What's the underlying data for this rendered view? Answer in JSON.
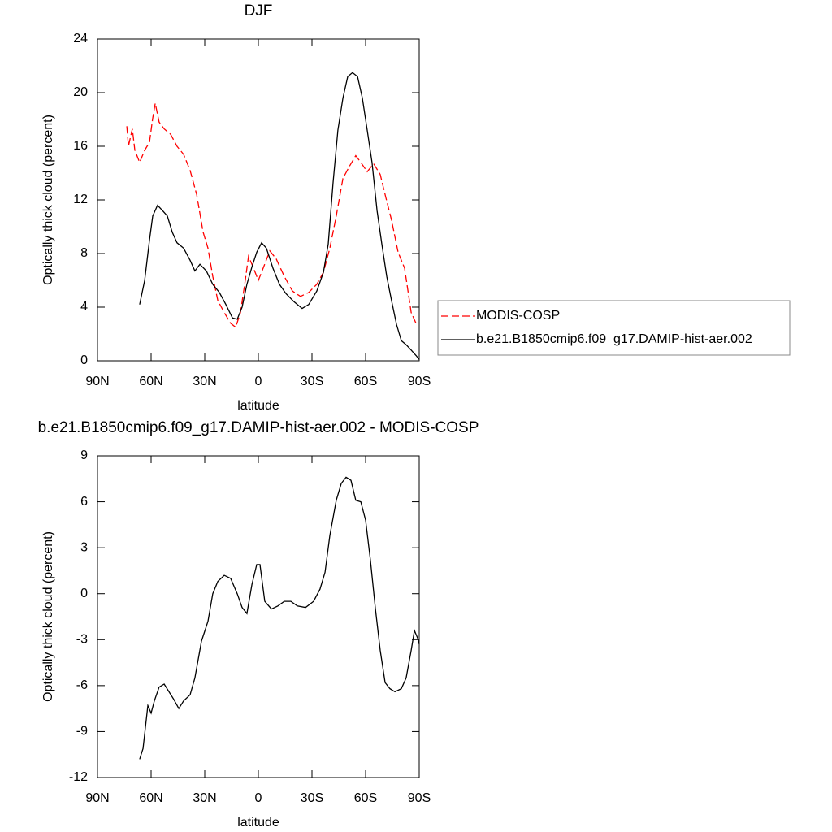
{
  "chart_data": [
    {
      "type": "line",
      "title": "DJF",
      "xlabel": "latitude",
      "ylabel": "Optically thick cloud (percent)",
      "xlim": [
        90,
        -90
      ],
      "xticks": [
        {
          "value": 90,
          "label": "90N"
        },
        {
          "value": 60,
          "label": "60N"
        },
        {
          "value": 30,
          "label": "30N"
        },
        0,
        {
          "value": -30,
          "label": "30S"
        },
        {
          "value": -60,
          "label": "60S"
        },
        {
          "value": -90,
          "label": "90S"
        }
      ],
      "ylim": [
        0,
        24
      ],
      "yticks": [
        0,
        4,
        8,
        12,
        16,
        20,
        24
      ],
      "legend": "right",
      "series": [
        {
          "name": "MODIS-COSP",
          "color": "#ff0000",
          "dashed": true,
          "x": [
            73.6,
            72.7,
            70.5,
            69.1,
            66.4,
            63.6,
            60.9,
            59.1,
            57.7,
            55.5,
            52.7,
            49.1,
            45.5,
            41.8,
            38.2,
            34.5,
            30.9,
            28.2,
            25.5,
            22.7,
            19.1,
            15.5,
            12.7,
            10,
            7.3,
            5.5,
            2.7,
            0,
            -2.7,
            -6.4,
            -10,
            -14.5,
            -19.1,
            -23.6,
            -28.2,
            -32.7,
            -36.4,
            -40,
            -43.6,
            -47.3,
            -50.9,
            -54.5,
            -57.3,
            -60.9,
            -64.5,
            -68.2,
            -70.9,
            -74.5,
            -78.2,
            -81.8,
            -85.5,
            -88.2
          ],
          "values": [
            17.5,
            16,
            17.3,
            15.7,
            14.8,
            15.7,
            16.3,
            18.1,
            19.2,
            17.8,
            17.3,
            16.9,
            16,
            15.4,
            14.2,
            12.4,
            9.6,
            8.4,
            6.3,
            4.5,
            3.6,
            2.8,
            2.5,
            3.6,
            6,
            7.8,
            6.9,
            6,
            6.9,
            8.2,
            7.6,
            6.3,
            5.2,
            4.8,
            5.1,
            5.7,
            6.6,
            8.4,
            10.8,
            13.6,
            14.5,
            15.3,
            14.8,
            14.1,
            14.7,
            13.9,
            12.4,
            10.5,
            8.1,
            6.9,
            3.6,
            2.8
          ]
        },
        {
          "name": "b.e21.B1850cmip6.f09_g17.DAMIP-hist-aer.002",
          "color": "#000000",
          "dashed": false,
          "x": [
            66.4,
            63.6,
            60.9,
            59.1,
            56.4,
            53.6,
            50.9,
            48.2,
            45.5,
            41.8,
            38.2,
            35.5,
            32.7,
            29.1,
            25.5,
            21.8,
            18.2,
            14.5,
            11.8,
            9.1,
            6.4,
            3.6,
            0.9,
            -1.8,
            -4.5,
            -8.2,
            -11.8,
            -15.5,
            -20,
            -24.5,
            -28.2,
            -32.7,
            -36.4,
            -39.1,
            -41.8,
            -44.5,
            -47.3,
            -50,
            -52.7,
            -55.5,
            -58.2,
            -60.9,
            -63.6,
            -66.4,
            -69.1,
            -71.8,
            -74.5,
            -77.3,
            -80,
            -82.7,
            -85.5,
            -88.2,
            -90
          ],
          "values": [
            4.2,
            6,
            9,
            10.8,
            11.6,
            11.2,
            10.8,
            9.6,
            8.8,
            8.4,
            7.5,
            6.7,
            7.2,
            6.7,
            5.7,
            5.1,
            4.2,
            3.2,
            3.1,
            4,
            5.7,
            7,
            8.1,
            8.8,
            8.4,
            6.9,
            5.7,
            5,
            4.4,
            3.9,
            4.2,
            5.2,
            6.6,
            8.7,
            13.3,
            17.2,
            19.6,
            21.2,
            21.5,
            21.2,
            19.6,
            17.2,
            14.8,
            11.2,
            8.7,
            6.3,
            4.5,
            2.7,
            1.5,
            1.2,
            0.8,
            0.4,
            0.1
          ]
        }
      ]
    },
    {
      "type": "line",
      "title": "b.e21.B1850cmip6.f09_g17.DAMIP-hist-aer.002 - MODIS-COSP",
      "xlabel": "latitude",
      "ylabel": "Optically thick cloud (percent)",
      "xlim": [
        90,
        -90
      ],
      "xticks": [
        {
          "value": 90,
          "label": "90N"
        },
        {
          "value": 60,
          "label": "60N"
        },
        {
          "value": 30,
          "label": "30N"
        },
        0,
        {
          "value": -30,
          "label": "30S"
        },
        {
          "value": -60,
          "label": "60S"
        },
        {
          "value": -90,
          "label": "90S"
        }
      ],
      "ylim": [
        -12,
        9
      ],
      "yticks": [
        -12,
        -9,
        -6,
        -3,
        0,
        3,
        6,
        9
      ],
      "series": [
        {
          "color": "#000000",
          "dashed": false,
          "x": [
            66.4,
            64.5,
            61.8,
            60,
            58.2,
            55.5,
            52.7,
            50,
            47.3,
            44.5,
            41.8,
            38.2,
            35.5,
            31.8,
            28.2,
            25.5,
            22.7,
            19.1,
            15.5,
            11.8,
            9.1,
            6.4,
            3.6,
            0.9,
            -0.9,
            -3.6,
            -7.3,
            -10.9,
            -14.5,
            -18.2,
            -21.8,
            -26.4,
            -30.9,
            -34.5,
            -37.3,
            -40,
            -43.6,
            -46.4,
            -49.1,
            -51.8,
            -54.5,
            -57.3,
            -60,
            -62.7,
            -65.5,
            -68.2,
            -70.9,
            -73.6,
            -76.4,
            -80,
            -82.7,
            -85.5,
            -87.3,
            -89.1,
            -90
          ],
          "values": [
            -10.8,
            -10.1,
            -7.3,
            -7.8,
            -7,
            -6.1,
            -5.9,
            -6.4,
            -6.9,
            -7.5,
            -7,
            -6.6,
            -5.5,
            -3.1,
            -1.8,
            0,
            0.8,
            1.2,
            1,
            0,
            -0.9,
            -1.3,
            0.6,
            1.9,
            1.9,
            -0.5,
            -1,
            -0.8,
            -0.5,
            -0.5,
            -0.8,
            -0.9,
            -0.5,
            0.3,
            1.4,
            3.8,
            6.1,
            7.2,
            7.6,
            7.4,
            6.1,
            6,
            4.8,
            2.2,
            -1,
            -3.7,
            -5.8,
            -6.2,
            -6.4,
            -6.2,
            -5.5,
            -3.7,
            -2.4,
            -2.9,
            -3.3
          ]
        }
      ]
    }
  ]
}
